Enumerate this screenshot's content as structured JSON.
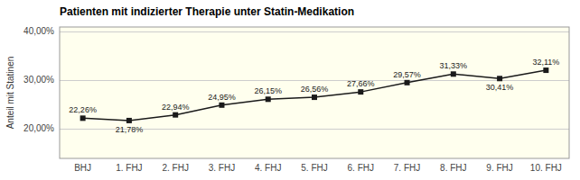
{
  "chart_data": {
    "type": "line",
    "title": "Patienten mit indizierter Therapie unter Statin-Medikation",
    "ylabel": "Anteil mit Statinen",
    "categories": [
      "BHJ",
      "1. FHJ",
      "2. FHJ",
      "3. FHJ",
      "4. FHJ",
      "5. FHJ",
      "6. FHJ",
      "7. FHJ",
      "8. FHJ",
      "9. FHJ",
      "10. FHJ"
    ],
    "values": [
      22.26,
      21.78,
      22.94,
      24.95,
      26.15,
      26.56,
      27.66,
      29.57,
      31.33,
      30.41,
      32.11
    ],
    "value_labels": [
      "22,26%",
      "21,78%",
      "22,94%",
      "24,95%",
      "26,15%",
      "26,56%",
      "27,66%",
      "29,57%",
      "31,33%",
      "30,41%",
      "32,11%"
    ],
    "ylim": [
      14,
      41
    ],
    "yticks": [
      {
        "value": 20.0,
        "label": "20,00%"
      },
      {
        "value": 30.0,
        "label": "30,00%"
      },
      {
        "value": 40.0,
        "label": "40,00%"
      }
    ],
    "grid": true,
    "data_labels": true,
    "color": "#1a1a1a",
    "marker": "square"
  }
}
